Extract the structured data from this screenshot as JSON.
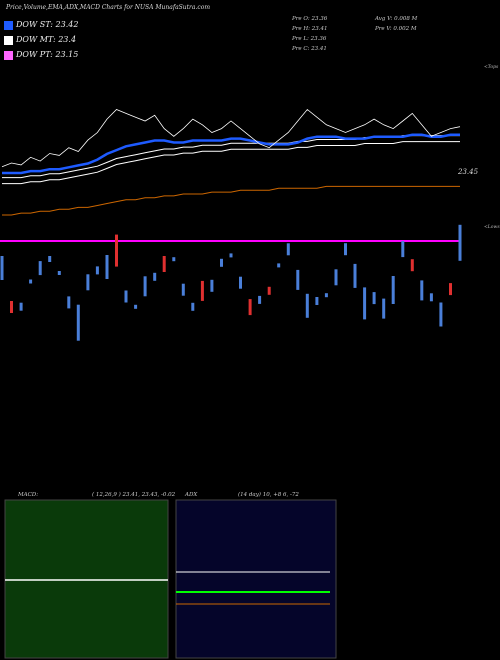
{
  "header": {
    "title": "Price,Volume,EMA,ADX,MACD Charts for NUSA MunafaSutra.com"
  },
  "legend": [
    {
      "label": "DOW ST: 23.42",
      "color": "#1e5bff"
    },
    {
      "label": "DOW MT: 23.4",
      "color": "#ffffff"
    },
    {
      "label": "DOW PT: 23.15",
      "color": "#ff66ff"
    }
  ],
  "info": {
    "open": "Pre  O: 23.36",
    "high": "Pre  H: 23.41",
    "low": "Pre  L: 23.36",
    "close": "Pre  C: 23.41",
    "avg_volume": "Avg V: 0.008  M",
    "prev_volume": "Pre  V: 0.002  M"
  },
  "tags": {
    "top": "<Tops",
    "lows": "<Lows",
    "price": "23.45"
  },
  "macd_panel": {
    "label": "MACD:",
    "params": "( 12,26,9 ) 23.41,  23.43,  -0.02"
  },
  "adx_panel": {
    "label": "ADX",
    "params": "(14  day) 10, +8          6, -72"
  },
  "colors": {
    "ema_short": "#1e5bff",
    "ema_mid": "#ffffff",
    "ema_long": "#cc6600",
    "dow_pt": "#ff00ff",
    "candle_up": "#4a7fd9",
    "candle_down": "#e03030",
    "macd_bg": "#0a3a0a",
    "adx_bg": "#05052a",
    "adx_green": "#00ff00",
    "adx_orange": "#cc6600"
  },
  "chart_data": {
    "type": "line",
    "price_series": [
      23.2,
      23.22,
      23.21,
      23.25,
      23.23,
      23.27,
      23.26,
      23.3,
      23.28,
      23.34,
      23.38,
      23.45,
      23.5,
      23.48,
      23.46,
      23.44,
      23.47,
      23.4,
      23.36,
      23.4,
      23.45,
      23.42,
      23.38,
      23.4,
      23.44,
      23.4,
      23.36,
      23.32,
      23.3,
      23.34,
      23.38,
      23.44,
      23.5,
      23.46,
      23.42,
      23.4,
      23.38,
      23.4,
      23.42,
      23.45,
      23.42,
      23.4,
      23.44,
      23.48,
      23.42,
      23.36,
      23.38,
      23.4,
      23.41
    ],
    "ema_short": [
      23.22,
      23.22,
      23.22,
      23.23,
      23.23,
      23.24,
      23.24,
      23.25,
      23.26,
      23.27,
      23.29,
      23.32,
      23.34,
      23.36,
      23.37,
      23.38,
      23.39,
      23.39,
      23.38,
      23.38,
      23.39,
      23.39,
      23.39,
      23.39,
      23.4,
      23.4,
      23.39,
      23.38,
      23.37,
      23.37,
      23.37,
      23.38,
      23.4,
      23.41,
      23.41,
      23.41,
      23.4,
      23.4,
      23.4,
      23.41,
      23.41,
      23.41,
      23.41,
      23.42,
      23.42,
      23.41,
      23.41,
      23.42,
      23.42
    ],
    "ema_mid": [
      23.18,
      23.18,
      23.18,
      23.19,
      23.19,
      23.2,
      23.2,
      23.21,
      23.22,
      23.23,
      23.24,
      23.26,
      23.28,
      23.29,
      23.3,
      23.31,
      23.32,
      23.33,
      23.33,
      23.34,
      23.34,
      23.35,
      23.35,
      23.35,
      23.36,
      23.36,
      23.36,
      23.36,
      23.36,
      23.36,
      23.36,
      23.37,
      23.37,
      23.38,
      23.38,
      23.38,
      23.38,
      23.38,
      23.39,
      23.39,
      23.39,
      23.39,
      23.4,
      23.4,
      23.4,
      23.4,
      23.4,
      23.4,
      23.4
    ],
    "ema_long": [
      23.0,
      23.0,
      23.01,
      23.01,
      23.02,
      23.02,
      23.03,
      23.03,
      23.04,
      23.04,
      23.05,
      23.06,
      23.07,
      23.08,
      23.08,
      23.09,
      23.09,
      23.1,
      23.1,
      23.11,
      23.11,
      23.11,
      23.12,
      23.12,
      23.12,
      23.13,
      23.13,
      23.13,
      23.13,
      23.14,
      23.14,
      23.14,
      23.14,
      23.14,
      23.15,
      23.15,
      23.15,
      23.15,
      23.15,
      23.15,
      23.15,
      23.15,
      23.15,
      23.15,
      23.15,
      23.15,
      23.15,
      23.15,
      23.15
    ],
    "volume_bars": [
      {
        "v": 0.6,
        "up": true
      },
      {
        "v": 0.3,
        "up": false
      },
      {
        "v": 0.2,
        "up": true
      },
      {
        "v": 0.1,
        "up": true
      },
      {
        "v": 0.35,
        "up": true
      },
      {
        "v": 0.15,
        "up": true
      },
      {
        "v": 0.05,
        "up": true
      },
      {
        "v": 0.3,
        "up": true
      },
      {
        "v": 0.9,
        "up": true
      },
      {
        "v": 0.4,
        "up": true
      },
      {
        "v": 0.2,
        "up": true
      },
      {
        "v": 0.6,
        "up": true
      },
      {
        "v": 0.8,
        "up": false
      },
      {
        "v": 0.3,
        "up": true
      },
      {
        "v": 0.1,
        "up": true
      },
      {
        "v": 0.5,
        "up": true
      },
      {
        "v": 0.2,
        "up": true
      },
      {
        "v": 0.4,
        "up": false
      },
      {
        "v": 0.1,
        "up": true
      },
      {
        "v": 0.3,
        "up": true
      },
      {
        "v": 0.2,
        "up": true
      },
      {
        "v": 0.5,
        "up": false
      },
      {
        "v": 0.3,
        "up": true
      },
      {
        "v": 0.2,
        "up": true
      },
      {
        "v": 0.1,
        "up": true
      },
      {
        "v": 0.3,
        "up": true
      },
      {
        "v": 0.4,
        "up": false
      },
      {
        "v": 0.2,
        "up": true
      },
      {
        "v": 0.2,
        "up": false
      },
      {
        "v": 0.1,
        "up": true
      },
      {
        "v": 0.3,
        "up": true
      },
      {
        "v": 0.5,
        "up": true
      },
      {
        "v": 0.6,
        "up": true
      },
      {
        "v": 0.2,
        "up": true
      },
      {
        "v": 0.1,
        "up": true
      },
      {
        "v": 0.4,
        "up": true
      },
      {
        "v": 0.3,
        "up": true
      },
      {
        "v": 0.6,
        "up": true
      },
      {
        "v": 0.8,
        "up": true
      },
      {
        "v": 0.3,
        "up": true
      },
      {
        "v": 0.5,
        "up": true
      },
      {
        "v": 0.7,
        "up": true
      },
      {
        "v": 0.4,
        "up": true
      },
      {
        "v": 0.3,
        "up": false
      },
      {
        "v": 0.5,
        "up": true
      },
      {
        "v": 0.2,
        "up": true
      },
      {
        "v": 0.6,
        "up": true
      },
      {
        "v": 0.3,
        "up": false
      },
      {
        "v": 0.9,
        "up": true
      }
    ]
  }
}
